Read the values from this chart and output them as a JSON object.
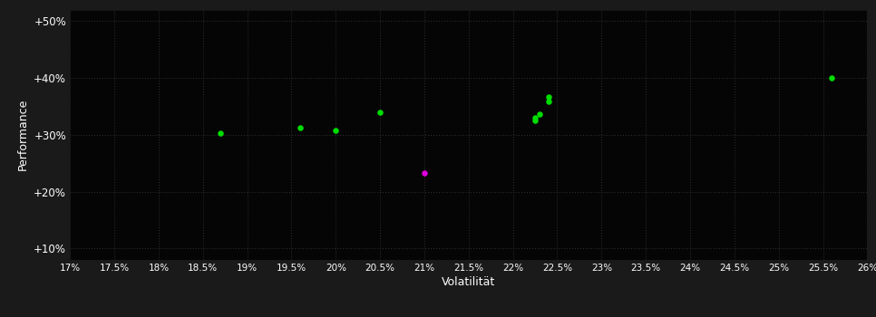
{
  "background_color": "#1a1a1a",
  "plot_bg_color": "#050505",
  "grid_color": "#2a2a2a",
  "text_color": "#ffffff",
  "xlabel": "Volatilität",
  "ylabel": "Performance",
  "xlim": [
    0.17,
    0.26
  ],
  "ylim": [
    0.08,
    0.52
  ],
  "xticks": [
    0.17,
    0.175,
    0.18,
    0.185,
    0.19,
    0.195,
    0.2,
    0.205,
    0.21,
    0.215,
    0.22,
    0.225,
    0.23,
    0.235,
    0.24,
    0.245,
    0.25,
    0.255,
    0.26
  ],
  "yticks": [
    0.1,
    0.2,
    0.3,
    0.4,
    0.5
  ],
  "green_points": [
    [
      0.187,
      0.302
    ],
    [
      0.196,
      0.313
    ],
    [
      0.2,
      0.307
    ],
    [
      0.205,
      0.34
    ],
    [
      0.224,
      0.367
    ],
    [
      0.224,
      0.358
    ],
    [
      0.223,
      0.336
    ],
    [
      0.2225,
      0.33
    ],
    [
      0.2225,
      0.325
    ],
    [
      0.256,
      0.4
    ]
  ],
  "magenta_points": [
    [
      0.21,
      0.233
    ]
  ],
  "green_color": "#00dd00",
  "magenta_color": "#dd00dd",
  "marker_size": 22
}
